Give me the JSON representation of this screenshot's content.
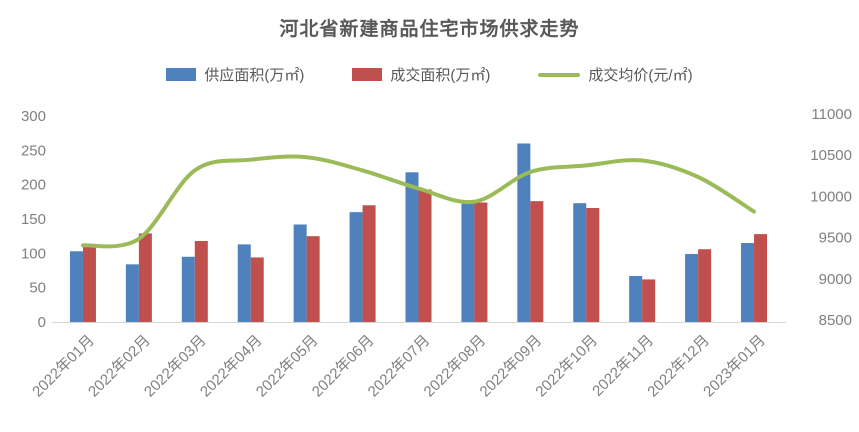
{
  "chart_data": {
    "type": "combo",
    "title": "河北省新建商品住宅市场供求走势",
    "categories": [
      "2022年01月",
      "2022年02月",
      "2022年03月",
      "2022年04月",
      "2022年05月",
      "2022年06月",
      "2022年07月",
      "2022年08月",
      "2022年09月",
      "2022年10月",
      "2022年11月",
      "2022年12月",
      "2023年01月"
    ],
    "series": [
      {
        "name": "供应面积(万㎡)",
        "type": "bar",
        "axis": "left",
        "color": "#4F81BD",
        "values": [
          103,
          84,
          95,
          113,
          142,
          160,
          218,
          176,
          260,
          173,
          67,
          99,
          115
        ]
      },
      {
        "name": "成交面积(万㎡)",
        "type": "bar",
        "axis": "left",
        "color": "#C0504D",
        "values": [
          111,
          129,
          118,
          94,
          125,
          170,
          193,
          174,
          176,
          166,
          62,
          106,
          128
        ]
      },
      {
        "name": "成交均价(元/㎡)",
        "type": "line",
        "axis": "right",
        "color": "#9BBB59",
        "values": [
          9430,
          9510,
          10340,
          10470,
          10500,
          10340,
          10120,
          9960,
          10320,
          10400,
          10460,
          10260,
          9840
        ]
      }
    ],
    "left_axis": {
      "min": 0,
      "max": 300,
      "step": 50,
      "labels": [
        "0",
        "50",
        "100",
        "150",
        "200",
        "250",
        "300"
      ]
    },
    "right_axis": {
      "min": 8500,
      "max": 11000,
      "step": 500,
      "labels": [
        "8500",
        "9000",
        "9500",
        "10000",
        "10500",
        "11000"
      ]
    },
    "layout": {
      "grid": false,
      "legend_position": "top",
      "x_label_rotation": -45
    },
    "colors": {
      "axis_text": "#808080",
      "title_text": "#595959",
      "axis_line": "#D6D6D6"
    }
  }
}
